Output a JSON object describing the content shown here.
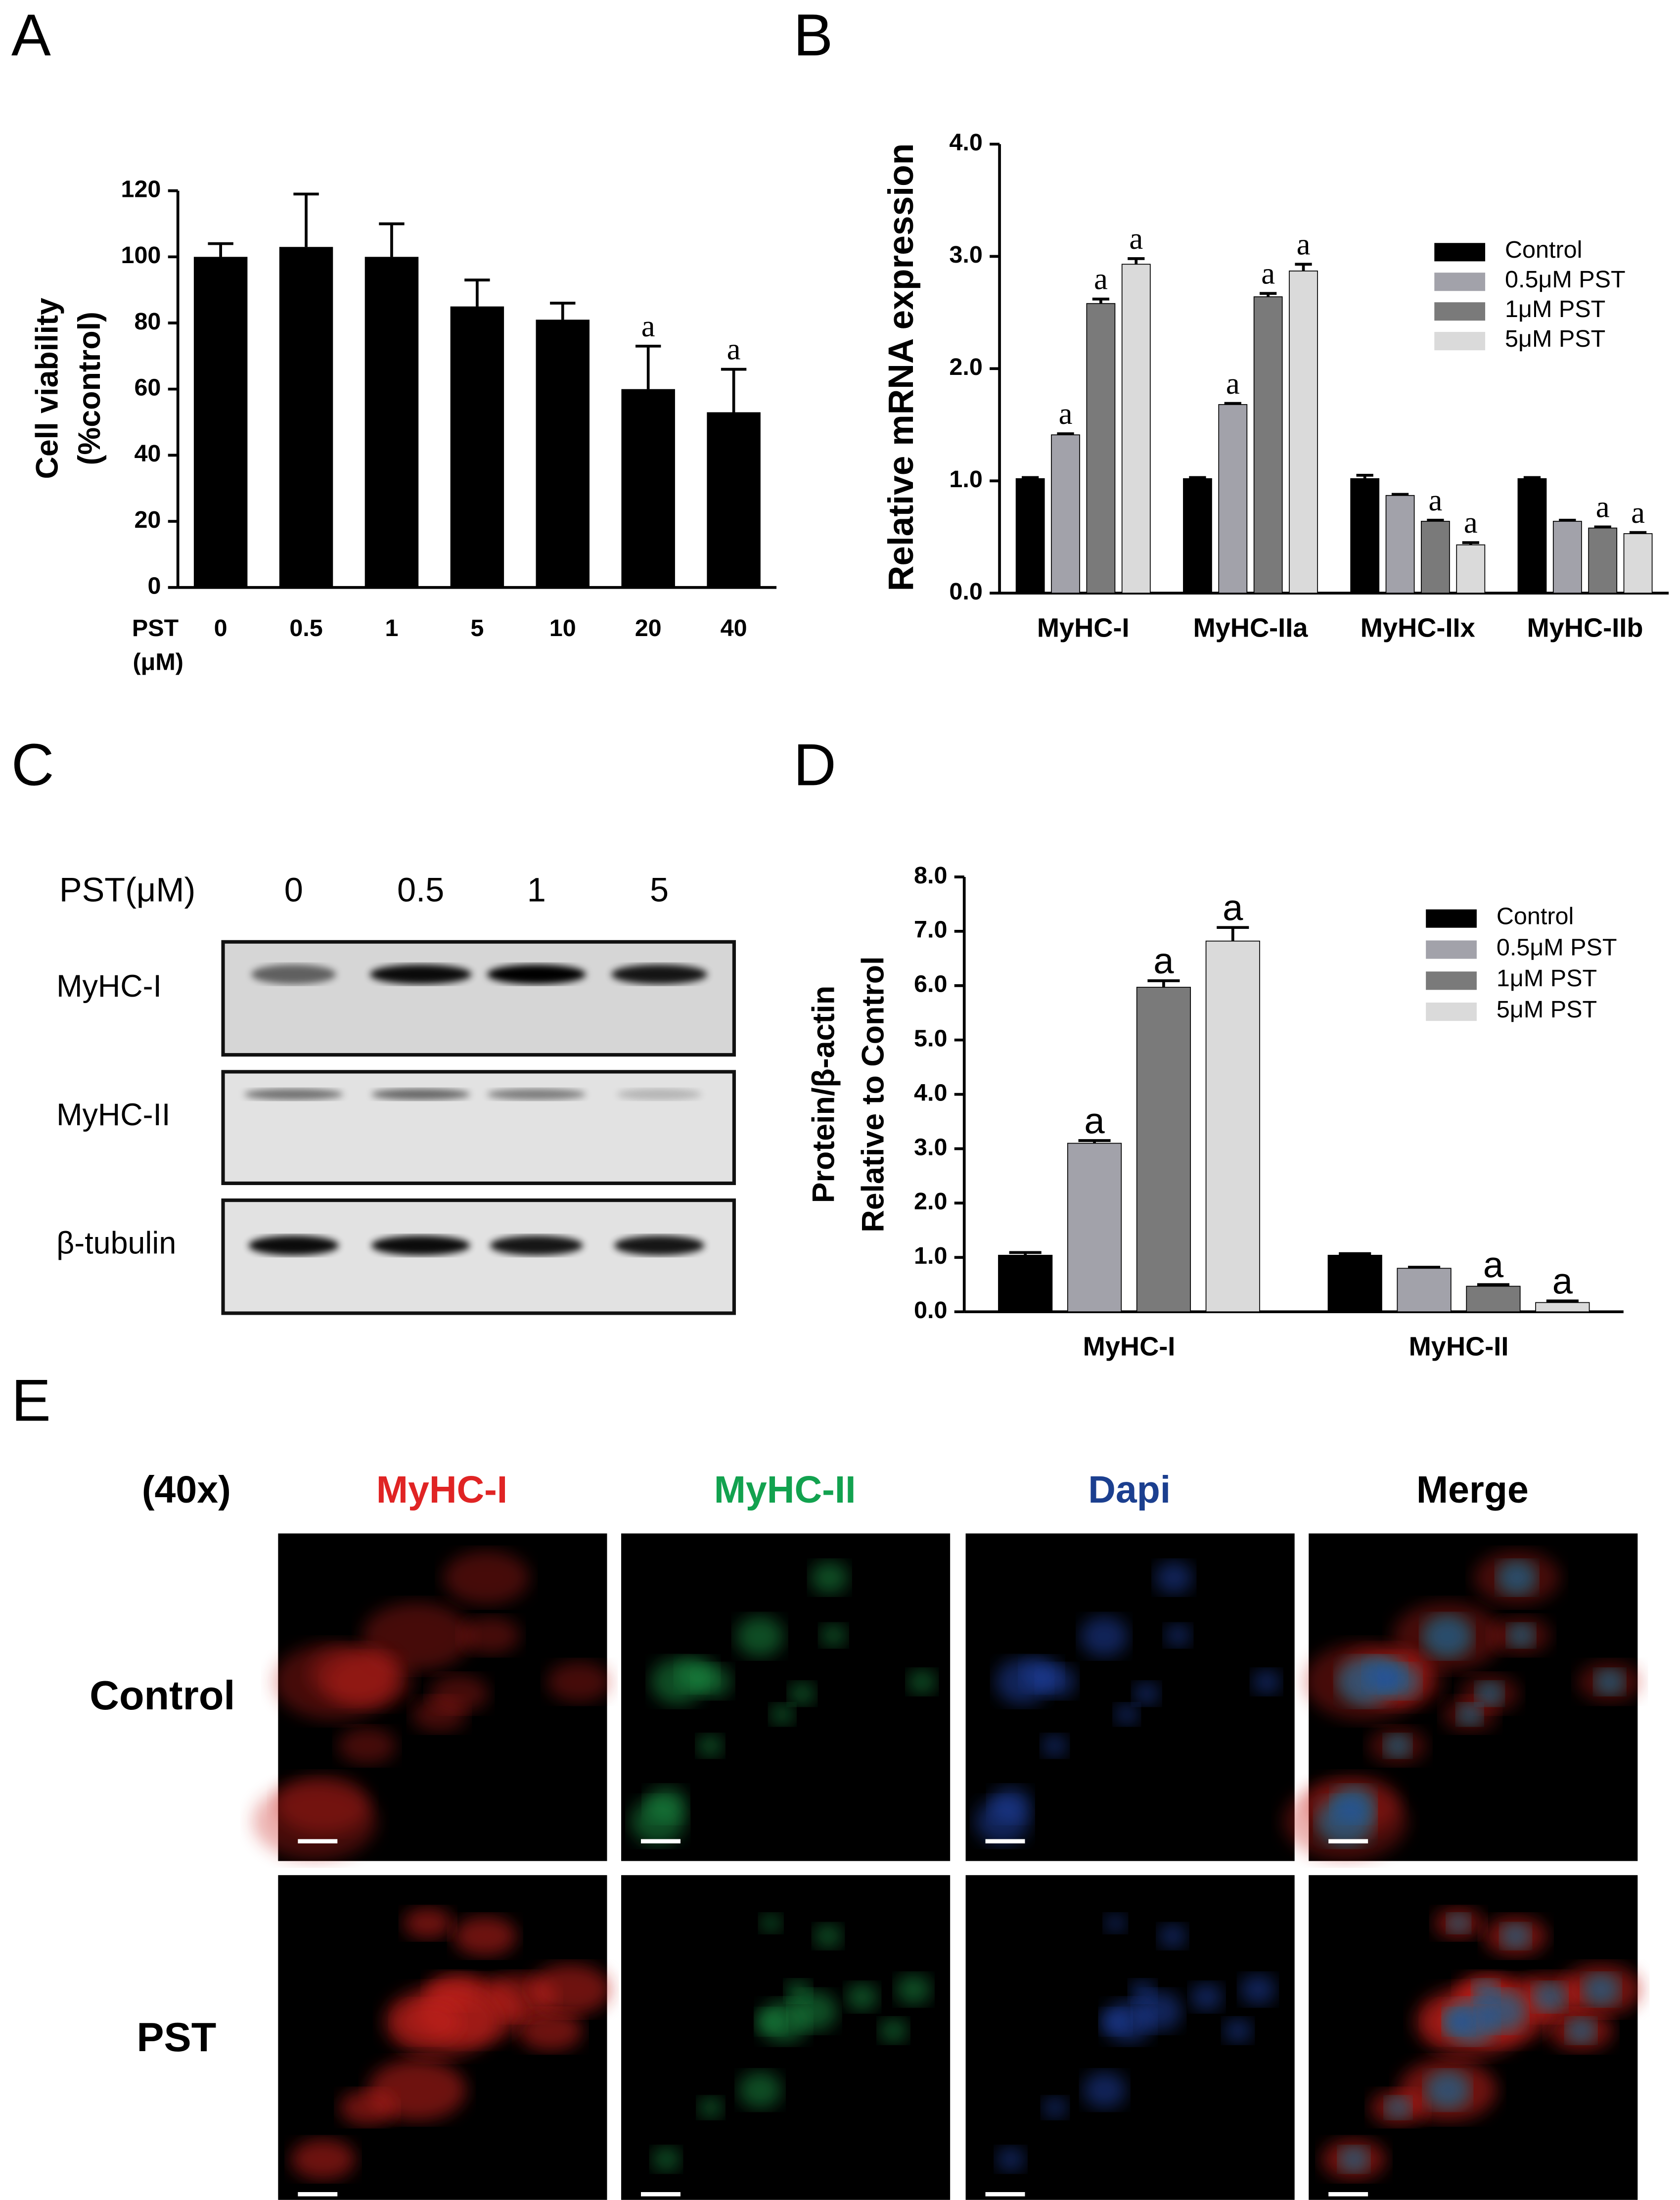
{
  "panel_labels": [
    "A",
    "B",
    "C",
    "D",
    "E"
  ],
  "chart_data": [
    {
      "type": "bar",
      "y_label": [
        "Cell viability",
        "(%control)"
      ],
      "x_label": [
        "PST",
        "(μM)"
      ],
      "categories": [
        "0",
        "0.5",
        "1",
        "5",
        "10",
        "20",
        "40"
      ],
      "values": [
        100,
        103,
        100,
        85,
        81,
        60,
        53
      ],
      "errors": [
        4,
        16,
        10,
        8,
        5,
        13,
        13
      ],
      "labels": [
        null,
        null,
        null,
        null,
        null,
        "a",
        "a"
      ],
      "color": "#000000",
      "ylim": [
        0,
        120
      ],
      "yticks": [
        0,
        20,
        40,
        60,
        80,
        100,
        120
      ]
    },
    {
      "type": "grouped_bar",
      "y_label": [
        "Relative mRNA expression"
      ],
      "categories": [
        "MyHC-I",
        "MyHC-IIa",
        "MyHC-IIx",
        "MyHC-IIb"
      ],
      "series": [
        {
          "name": "Control",
          "color": "#000000",
          "values": [
            1.02,
            1.02,
            1.02,
            1.02
          ],
          "errors": [
            0.01,
            0.01,
            0.03,
            0.01
          ],
          "labels": [
            null,
            null,
            null,
            null
          ]
        },
        {
          "name": "0.5μM PST",
          "color": "#a2a2aa",
          "values": [
            1.41,
            1.68,
            0.87,
            0.64
          ],
          "errors": [
            0.01,
            0.01,
            0.01,
            0.01
          ],
          "labels": [
            "a",
            "a",
            null,
            null
          ]
        },
        {
          "name": "1μM PST",
          "color": "#7a7a7a",
          "values": [
            2.58,
            2.64,
            0.64,
            0.58
          ],
          "errors": [
            0.04,
            0.03,
            0.01,
            0.01
          ],
          "labels": [
            "a",
            "a",
            "a",
            "a"
          ]
        },
        {
          "name": "5μM PST",
          "color": "#dadada",
          "values": [
            2.93,
            2.87,
            0.43,
            0.53
          ],
          "errors": [
            0.05,
            0.06,
            0.02,
            0.01
          ],
          "labels": [
            "a",
            "a",
            "a",
            "a"
          ]
        }
      ],
      "ylim": [
        0,
        4
      ],
      "yticks": [
        {
          "value": 0,
          "label": "0.0"
        },
        {
          "value": 1,
          "label": "1.0"
        },
        {
          "value": 2,
          "label": "2.0"
        },
        {
          "value": 3,
          "label": "3.0"
        },
        {
          "value": 4,
          "label": "4.0"
        }
      ]
    },
    {
      "type": "grouped_bar",
      "y_label": [
        "Protein/β-actin",
        "Relative to Control"
      ],
      "categories": [
        "MyHC-I",
        "MyHC-II"
      ],
      "series": [
        {
          "name": "Control",
          "color": "#000000",
          "values": [
            1.04,
            1.04
          ],
          "errors": [
            0.05,
            0.03
          ],
          "labels": [
            null,
            null
          ]
        },
        {
          "name": "0.5μM PST",
          "color": "#a2a2aa",
          "values": [
            3.1,
            0.8
          ],
          "errors": [
            0.05,
            0.02
          ],
          "labels": [
            "a",
            null
          ]
        },
        {
          "name": "1μM PST",
          "color": "#7a7a7a",
          "values": [
            5.97,
            0.47
          ],
          "errors": [
            0.12,
            0.03
          ],
          "labels": [
            "a",
            "a"
          ]
        },
        {
          "name": "5μM PST",
          "color": "#dadada",
          "values": [
            6.82,
            0.17
          ],
          "errors": [
            0.25,
            0.03
          ],
          "labels": [
            "a",
            "a"
          ]
        }
      ],
      "ylim": [
        0,
        8
      ],
      "yticks": [
        {
          "value": 0,
          "label": "0.0"
        },
        {
          "value": 1,
          "label": "1.0"
        },
        {
          "value": 2,
          "label": "2.0"
        },
        {
          "value": 3,
          "label": "3.0"
        },
        {
          "value": 4,
          "label": "4.0"
        },
        {
          "value": 5,
          "label": "5.0"
        },
        {
          "value": 6,
          "label": "6.0"
        },
        {
          "value": 7,
          "label": "7.0"
        },
        {
          "value": 8,
          "label": "8.0"
        }
      ]
    }
  ],
  "western_blot": {
    "header": "PST(μM)",
    "lanes": [
      "0",
      "0.5",
      "1",
      "5"
    ],
    "rows": [
      "MyHC-I",
      "MyHC-II",
      "β-tubulin"
    ]
  },
  "microscopy": {
    "magnification": "(40x)",
    "channels": [
      "MyHC-I",
      "MyHC-II",
      "Dapi",
      "Merge"
    ],
    "conditions": [
      "Control",
      "PST"
    ]
  }
}
